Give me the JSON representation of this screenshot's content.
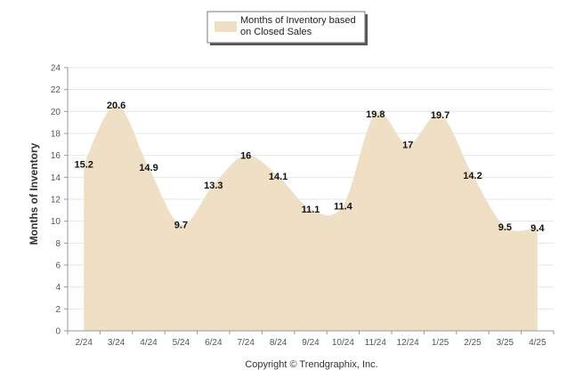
{
  "chart_data": {
    "type": "area",
    "ylabel": "Months of Inventory",
    "xlabel": "",
    "ylim": [
      0,
      24
    ],
    "yticks": [
      "0",
      "2",
      "4",
      "6",
      "8",
      "10",
      "12",
      "14",
      "16",
      "18",
      "20",
      "22",
      "24"
    ],
    "grid": true,
    "legend_placement": "top-center",
    "categories": [
      "2/24",
      "3/24",
      "4/24",
      "5/24",
      "6/24",
      "7/24",
      "8/24",
      "9/24",
      "10/24",
      "11/24",
      "12/24",
      "1/25",
      "2/25",
      "3/25",
      "4/25"
    ],
    "series": [
      {
        "name": "Months of Inventory based on Closed Sales",
        "values": [
          15.2,
          20.6,
          14.9,
          9.7,
          13.3,
          16,
          14.1,
          11.1,
          11.4,
          19.8,
          17,
          19.7,
          14.2,
          9.5,
          9.4
        ],
        "labels": [
          "15.2",
          "20.6",
          "14.9",
          "9.7",
          "13.3",
          "16",
          "14.1",
          "11.1",
          "11.4",
          "19.8",
          "17",
          "19.7",
          "14.2",
          "9.5",
          "9.4"
        ]
      }
    ],
    "legend": {
      "line1": "Months of Inventory based",
      "line2": "on Closed Sales"
    },
    "footer": "Copyright © Trendgraphix, Inc.",
    "colors": {
      "area_fill": "#eedfc5",
      "grid": "#e6e6e6",
      "axis": "#999999"
    }
  }
}
